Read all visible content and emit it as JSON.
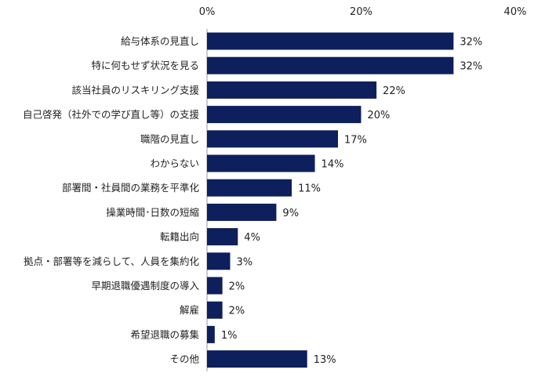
{
  "chart_data": {
    "type": "bar",
    "orientation": "horizontal",
    "categories": [
      "給与体系の見直し",
      "特に何もせず状況を見る",
      "該当社員のリスキリング支援",
      "自己啓発（社外での学び直し等）の支援",
      "職階の見直し",
      "わからない",
      "部署間・社員間の業務を平準化",
      "操業時間･日数の短縮",
      "転籍出向",
      "拠点・部署等を減らして、人員を集約化",
      "早期退職優遇制度の導入",
      "解雇",
      "希望退職の募集",
      "その他"
    ],
    "values": [
      32,
      32,
      22,
      20,
      17,
      14,
      11,
      9,
      4,
      3,
      2,
      2,
      1,
      13
    ],
    "value_labels": [
      "32%",
      "32%",
      "22%",
      "20%",
      "17%",
      "14%",
      "11%",
      "9%",
      "4%",
      "3%",
      "2%",
      "2%",
      "1%",
      "13%"
    ],
    "xlim": [
      0,
      40
    ],
    "x_ticks": [
      0,
      20,
      40
    ],
    "x_tick_labels": [
      "0%",
      "20%",
      "40%"
    ],
    "tick_position": "top",
    "grid": false,
    "legend": "none",
    "bar_color": "#0d1f5c"
  }
}
